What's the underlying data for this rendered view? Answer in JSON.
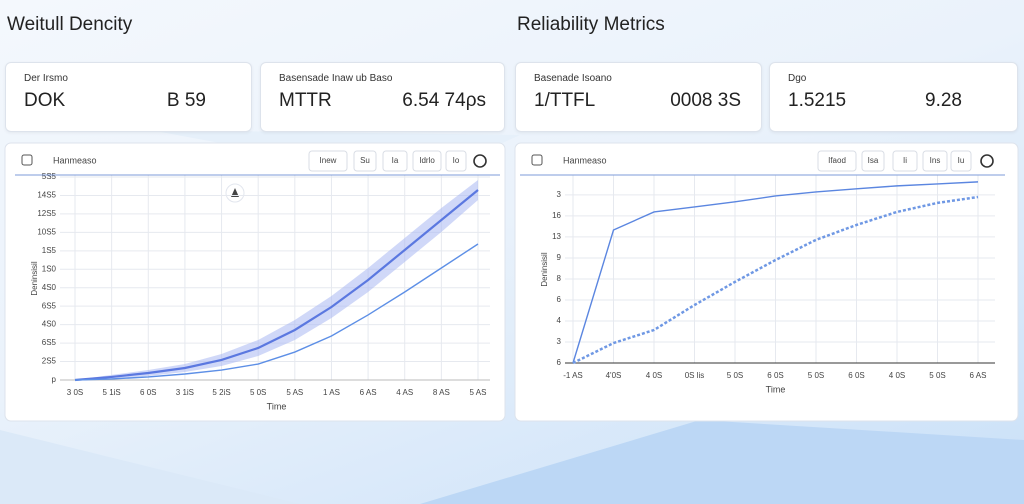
{
  "headings": [
    "Weitull Dencity",
    "Reliability Metrics"
  ],
  "cards": [
    {
      "label": "Der Irsmo",
      "value": "DOK",
      "value2": "B 59"
    },
    {
      "label": "Basensade Inaw ub Baso",
      "value": "MTTR",
      "value2": "6.54 74ρs"
    },
    {
      "label": "Basenade Isoano",
      "value": "1/TTFL",
      "value2": "0008 3S"
    },
    {
      "label": "Dgo",
      "value": "1.5215",
      "value2": "9.28"
    }
  ],
  "chart_data": [
    {
      "type": "line",
      "title": "Hanmeaso",
      "toolbar": [
        "Inew",
        "Su",
        "Ia",
        "Idrlo",
        "Io"
      ],
      "x_label": "Time",
      "y_label": "Deninsisil",
      "x": [
        0,
        1,
        2,
        3,
        4,
        5,
        6,
        7,
        8,
        9,
        10,
        11
      ],
      "xlim": [
        0,
        11
      ],
      "xticks": [
        {
          "value": 0,
          "label": "3 0S"
        },
        {
          "value": 1,
          "label": "5 1iS"
        },
        {
          "value": 2,
          "label": "6 0S"
        },
        {
          "value": 3,
          "label": "3 1iS"
        },
        {
          "value": 4,
          "label": "5 2iS"
        },
        {
          "value": 5,
          "label": "5 0S"
        },
        {
          "value": 6,
          "label": "5 AS"
        },
        {
          "value": 7,
          "label": "1 AS"
        },
        {
          "value": 8,
          "label": "6 AS"
        },
        {
          "value": 9,
          "label": "4 AS"
        },
        {
          "value": 10,
          "label": "8 AS"
        },
        {
          "value": 11,
          "label": "5 AS"
        }
      ],
      "ylim": [
        0,
        2200
      ],
      "yticks": [
        {
          "value": 0,
          "label": "p"
        },
        {
          "value": 200,
          "label": "2S5"
        },
        {
          "value": 400,
          "label": "6S5"
        },
        {
          "value": 600,
          "label": "4S0"
        },
        {
          "value": 800,
          "label": "6S5"
        },
        {
          "value": 1000,
          "label": "4S0"
        },
        {
          "value": 1200,
          "label": "1S0"
        },
        {
          "value": 1400,
          "label": "1S5"
        },
        {
          "value": 1600,
          "label": "10S5"
        },
        {
          "value": 1800,
          "label": "12S5"
        },
        {
          "value": 2000,
          "label": "14S5"
        },
        {
          "value": 2200,
          "label": "5S5"
        }
      ],
      "grid": true,
      "band": {
        "color": "#a9b8f3",
        "upper": [
          0,
          55,
          109,
          173,
          282,
          434,
          650,
          910,
          1214,
          1539,
          1864,
          2167
        ],
        "lower": [
          0,
          11,
          43,
          87,
          152,
          260,
          434,
          672,
          954,
          1279,
          1604,
          1951
        ]
      },
      "series": [
        {
          "color": "#5b78e0",
          "values": [
            0,
            33,
            76,
            130,
            217,
            347,
            542,
            791,
            1084,
            1409,
            1734,
            2059
          ]
        },
        {
          "color": "#5d8fe6",
          "values": [
            0,
            11,
            33,
            65,
            108,
            173,
            303,
            477,
            705,
            954,
            1214,
            1474
          ]
        }
      ]
    },
    {
      "type": "line",
      "title": "Hanmeaso",
      "toolbar": [
        "Ifaod",
        "Isa",
        "Ii",
        "Ins",
        "Iu"
      ],
      "x_label": "Time",
      "y_label": "Deninsisil",
      "x": [
        0,
        1,
        2,
        3,
        4,
        5,
        6,
        7,
        8,
        9,
        10
      ],
      "xlim": [
        0,
        10
      ],
      "xticks": [
        {
          "value": 0,
          "label": "-1 AS"
        },
        {
          "value": 1,
          "label": "4'0S"
        },
        {
          "value": 2,
          "label": "4 0S"
        },
        {
          "value": 3,
          "label": "0S lis"
        },
        {
          "value": 4,
          "label": "5 0S"
        },
        {
          "value": 5,
          "label": "6 0S"
        },
        {
          "value": 6,
          "label": "5 0S"
        },
        {
          "value": 7,
          "label": "6 0S"
        },
        {
          "value": 8,
          "label": "4 0S"
        },
        {
          "value": 9,
          "label": "5 0S"
        },
        {
          "value": 10,
          "label": "6 AS"
        }
      ],
      "ylim": [
        0,
        8.9
      ],
      "yticks": [
        {
          "value": 0,
          "label": "6"
        },
        {
          "value": 1,
          "label": "3"
        },
        {
          "value": 2,
          "label": "4"
        },
        {
          "value": 3,
          "label": "6"
        },
        {
          "value": 4,
          "label": "8"
        },
        {
          "value": 5,
          "label": "9"
        },
        {
          "value": 6,
          "label": "13"
        },
        {
          "value": 7,
          "label": "16"
        },
        {
          "value": 8,
          "label": "3"
        }
      ],
      "grid": true,
      "series": [
        {
          "color": "#5b86e0",
          "values": [
            0,
            6.33,
            7.19,
            7.43,
            7.67,
            7.95,
            8.14,
            8.29,
            8.43,
            8.52,
            8.62
          ]
        },
        {
          "color": "#6f98e4",
          "dashed": true,
          "values": [
            0,
            0.95,
            1.57,
            2.76,
            3.86,
            4.9,
            5.86,
            6.57,
            7.19,
            7.62,
            7.9
          ]
        }
      ]
    }
  ]
}
